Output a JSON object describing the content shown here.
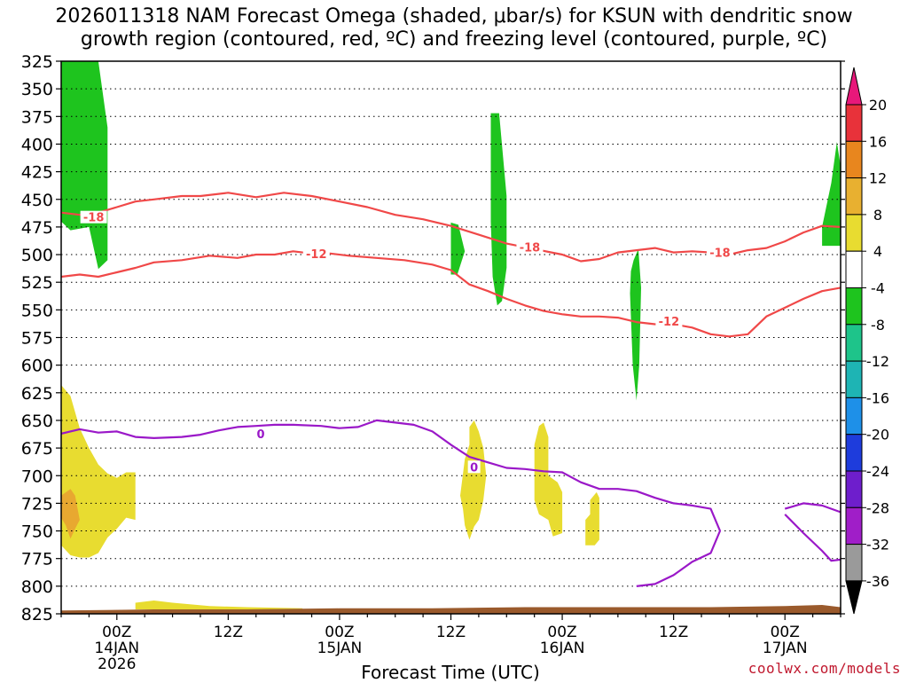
{
  "title_line1": "2026011318 NAM Forecast Omega (shaded, μbar/s) for KSUN with dendritic snow",
  "title_line2": "growth region (contoured, red, ºC) and freezing level (contoured, purple, ºC)",
  "credit": "coolwx.com/models",
  "chart_data": {
    "type": "time-height cross section",
    "xlabel": "Forecast Time (UTC)",
    "ylabel": "",
    "y_axis": {
      "unit": "hPa",
      "inverted": true,
      "range": [
        825,
        325
      ],
      "ticks": [
        325,
        350,
        375,
        400,
        425,
        450,
        475,
        500,
        525,
        550,
        575,
        600,
        625,
        650,
        675,
        700,
        725,
        750,
        775,
        800,
        825
      ]
    },
    "x_axis": {
      "unit": "hours since 2026-01-13 18Z",
      "range": [
        0,
        84
      ],
      "ticks": [
        {
          "hour": 6,
          "label": "00Z",
          "sub1": "14JAN",
          "sub2": "2026"
        },
        {
          "hour": 18,
          "label": "12Z",
          "sub1": "",
          "sub2": ""
        },
        {
          "hour": 30,
          "label": "00Z",
          "sub1": "15JAN",
          "sub2": ""
        },
        {
          "hour": 42,
          "label": "12Z",
          "sub1": "",
          "sub2": ""
        },
        {
          "hour": 54,
          "label": "00Z",
          "sub1": "16JAN",
          "sub2": ""
        },
        {
          "hour": 66,
          "label": "12Z",
          "sub1": "",
          "sub2": ""
        },
        {
          "hour": 78,
          "label": "00Z",
          "sub1": "17JAN",
          "sub2": ""
        }
      ]
    },
    "grid": "dotted horizontal at each pressure tick",
    "colorbar": {
      "labels": [
        "20",
        "16",
        "12",
        "8",
        "4",
        "-4",
        "-8",
        "-12",
        "-16",
        "-20",
        "-24",
        "-28",
        "-32",
        "-36"
      ],
      "colors": [
        "#e8187a",
        "#e8323a",
        "#e8861e",
        "#e8b030",
        "#e8dc30",
        "#ffffff",
        "#1ec41e",
        "#1ec48a",
        "#1eb4b4",
        "#1e90e8",
        "#1e3cdc",
        "#6e1ecc",
        "#a01ec8",
        "#9a9a9a",
        "#000000"
      ]
    },
    "series": [
      {
        "name": "-18",
        "color": "#f04848",
        "label_positions": [
          [
            3.5,
            466
          ],
          [
            50.5,
            493
          ],
          [
            71,
            498
          ]
        ],
        "points": [
          [
            0,
            462
          ],
          [
            2,
            464
          ],
          [
            4,
            462
          ],
          [
            6,
            457
          ],
          [
            8,
            452
          ],
          [
            10,
            450
          ],
          [
            13,
            447
          ],
          [
            15,
            447
          ],
          [
            18,
            444
          ],
          [
            21,
            448
          ],
          [
            24,
            444
          ],
          [
            27,
            447
          ],
          [
            30,
            452
          ],
          [
            33,
            457
          ],
          [
            36,
            464
          ],
          [
            39,
            468
          ],
          [
            42,
            474
          ],
          [
            45,
            482
          ],
          [
            48,
            490
          ],
          [
            51,
            495
          ],
          [
            54,
            500
          ],
          [
            56,
            506
          ],
          [
            58,
            504
          ],
          [
            60,
            498
          ],
          [
            62,
            496
          ],
          [
            64,
            494
          ],
          [
            66,
            498
          ],
          [
            68,
            497
          ],
          [
            70,
            498
          ],
          [
            72,
            500
          ],
          [
            74,
            496
          ],
          [
            76,
            494
          ],
          [
            78,
            488
          ],
          [
            80,
            480
          ],
          [
            82,
            474
          ],
          [
            84,
            475
          ]
        ]
      },
      {
        "name": "-12",
        "color": "#f04848",
        "label_positions": [
          [
            27.5,
            499
          ],
          [
            65.5,
            560
          ]
        ],
        "points": [
          [
            0,
            520
          ],
          [
            2,
            518
          ],
          [
            4,
            520
          ],
          [
            6,
            516
          ],
          [
            8,
            512
          ],
          [
            10,
            507
          ],
          [
            13,
            505
          ],
          [
            16,
            501
          ],
          [
            19,
            503
          ],
          [
            21,
            500
          ],
          [
            23,
            500
          ],
          [
            25,
            497
          ],
          [
            27,
            499
          ],
          [
            29,
            499
          ],
          [
            31,
            501
          ],
          [
            34,
            503
          ],
          [
            37,
            505
          ],
          [
            40,
            509
          ],
          [
            42,
            514
          ],
          [
            44,
            527
          ],
          [
            46,
            533
          ],
          [
            48,
            540
          ],
          [
            50,
            546
          ],
          [
            52,
            551
          ],
          [
            54,
            554
          ],
          [
            56,
            556
          ],
          [
            58,
            556
          ],
          [
            60,
            557
          ],
          [
            62,
            561
          ],
          [
            64,
            563
          ],
          [
            66,
            563
          ],
          [
            68,
            566
          ],
          [
            70,
            572
          ],
          [
            72,
            574
          ],
          [
            74,
            572
          ],
          [
            76,
            556
          ],
          [
            78,
            548
          ],
          [
            80,
            540
          ],
          [
            82,
            533
          ],
          [
            84,
            530
          ]
        ]
      },
      {
        "name": "0",
        "color": "#9a18c8",
        "label_positions": [
          [
            21.5,
            662
          ],
          [
            44.5,
            692
          ]
        ],
        "points": [
          [
            0,
            662
          ],
          [
            2,
            658
          ],
          [
            4,
            661
          ],
          [
            6,
            660
          ],
          [
            8,
            665
          ],
          [
            10,
            666
          ],
          [
            13,
            665
          ],
          [
            15,
            663
          ],
          [
            17,
            659
          ],
          [
            19,
            656
          ],
          [
            21,
            655
          ],
          [
            23,
            654
          ],
          [
            25,
            654
          ],
          [
            28,
            655
          ],
          [
            30,
            657
          ],
          [
            32,
            656
          ],
          [
            34,
            650
          ],
          [
            36,
            652
          ],
          [
            38,
            654
          ],
          [
            40,
            660
          ],
          [
            42,
            672
          ],
          [
            44,
            683
          ],
          [
            46,
            688
          ],
          [
            48,
            693
          ],
          [
            50,
            694
          ],
          [
            52,
            696
          ],
          [
            54,
            697
          ],
          [
            56,
            706
          ],
          [
            58,
            712
          ],
          [
            60,
            712
          ],
          [
            62,
            714
          ],
          [
            64,
            720
          ],
          [
            66,
            725
          ],
          [
            68,
            727
          ],
          [
            70,
            730
          ],
          [
            71,
            750
          ],
          [
            70,
            770
          ],
          [
            68,
            778
          ],
          [
            66,
            790
          ],
          [
            64,
            798
          ],
          [
            62,
            800
          ]
        ]
      },
      {
        "name": "0 (right edge)",
        "color": "#9a18c8",
        "label_positions": [],
        "points": [
          [
            78,
            730
          ],
          [
            80,
            725
          ],
          [
            82,
            727
          ],
          [
            84,
            733
          ]
        ]
      },
      {
        "name": "0 (right edge, lower)",
        "color": "#9a18c8",
        "label_positions": [],
        "points": [
          [
            78,
            735
          ],
          [
            80,
            752
          ],
          [
            82,
            768
          ],
          [
            83,
            777
          ],
          [
            84,
            776
          ]
        ]
      }
    ],
    "shaded_regions": [
      {
        "range": "-8 to -4",
        "color": "#1ec41e",
        "points": [
          [
            0,
            325
          ],
          [
            4,
            325
          ],
          [
            5,
            385
          ],
          [
            5,
            505
          ],
          [
            4,
            513
          ],
          [
            3,
            475
          ],
          [
            1,
            478
          ],
          [
            0,
            470
          ]
        ]
      },
      {
        "range": "-8 to -4",
        "color": "#1ec41e",
        "points": [
          [
            42,
            471
          ],
          [
            42.8,
            473
          ],
          [
            43.5,
            497
          ],
          [
            42.7,
            518
          ],
          [
            42,
            518
          ]
        ]
      },
      {
        "range": "-8 to -4",
        "color": "#1ec41e",
        "points": [
          [
            46.3,
            372
          ],
          [
            47.2,
            372
          ],
          [
            48,
            447
          ],
          [
            48,
            512
          ],
          [
            47.5,
            542
          ],
          [
            47,
            546
          ],
          [
            46.5,
            520
          ],
          [
            46.3,
            470
          ]
        ]
      },
      {
        "range": "-8 to -4",
        "color": "#1ec41e",
        "points": [
          [
            61.7,
            505
          ],
          [
            62.2,
            495
          ],
          [
            62.5,
            530
          ],
          [
            62.3,
            600
          ],
          [
            62,
            632
          ],
          [
            61.6,
            600
          ],
          [
            61.3,
            535
          ],
          [
            61.4,
            515
          ]
        ]
      },
      {
        "range": "-8 to -4",
        "color": "#1ec41e",
        "points": [
          [
            83,
            435
          ],
          [
            83.6,
            398
          ],
          [
            84,
            420
          ],
          [
            84,
            492
          ],
          [
            82,
            492
          ],
          [
            82,
            475
          ]
        ]
      },
      {
        "range": "4 to 8",
        "color": "#e8dc30",
        "points": [
          [
            0,
            618
          ],
          [
            1,
            628
          ],
          [
            2,
            657
          ],
          [
            3,
            675
          ],
          [
            4,
            690
          ],
          [
            5,
            698
          ],
          [
            6,
            702
          ],
          [
            7,
            697
          ],
          [
            8,
            697
          ],
          [
            8,
            740
          ],
          [
            7,
            738
          ],
          [
            6,
            748
          ],
          [
            5,
            756
          ],
          [
            4,
            770
          ],
          [
            3,
            774
          ],
          [
            2,
            774
          ],
          [
            1,
            772
          ],
          [
            0,
            763
          ]
        ]
      },
      {
        "range": "4 to 8",
        "color": "#e8dc30",
        "points": [
          [
            43.5,
            685
          ],
          [
            44,
            672
          ],
          [
            44,
            656
          ],
          [
            44.5,
            650
          ],
          [
            45,
            660
          ],
          [
            45.5,
            675
          ],
          [
            45.8,
            700
          ],
          [
            45.5,
            722
          ],
          [
            45,
            740
          ],
          [
            44.5,
            746
          ],
          [
            44,
            758
          ],
          [
            43.5,
            745
          ],
          [
            43.3,
            730
          ],
          [
            43,
            718
          ]
        ]
      },
      {
        "range": "4 to 8",
        "color": "#e8dc30",
        "points": [
          [
            51,
            672
          ],
          [
            51.5,
            655
          ],
          [
            52,
            652
          ],
          [
            52.5,
            665
          ],
          [
            52.5,
            700
          ],
          [
            53.5,
            706
          ],
          [
            54,
            715
          ],
          [
            54,
            752
          ],
          [
            53,
            755
          ],
          [
            52.5,
            740
          ],
          [
            51.5,
            735
          ],
          [
            51,
            722
          ]
        ]
      },
      {
        "range": "4 to 8",
        "color": "#e8dc30",
        "points": [
          [
            56.5,
            740
          ],
          [
            57,
            735
          ],
          [
            57,
            722
          ],
          [
            57.7,
            715
          ],
          [
            58,
            720
          ],
          [
            58,
            758
          ],
          [
            57.5,
            763
          ],
          [
            56.5,
            763
          ]
        ]
      },
      {
        "range": "8 to 12",
        "color": "#e8a830",
        "points": [
          [
            0,
            718
          ],
          [
            1,
            712
          ],
          [
            1.5,
            718
          ],
          [
            2,
            740
          ],
          [
            1.5,
            748
          ],
          [
            1,
            757
          ],
          [
            0.5,
            745
          ],
          [
            0,
            738
          ]
        ]
      },
      {
        "range": "4 to 8",
        "color": "#e8dc30",
        "points": [
          [
            8,
            815
          ],
          [
            10,
            813
          ],
          [
            12,
            815
          ],
          [
            16,
            818
          ],
          [
            20,
            819
          ],
          [
            26,
            820
          ],
          [
            26,
            821
          ],
          [
            8,
            821
          ]
        ]
      }
    ],
    "terrain": {
      "color": "#9a5a2c",
      "points": [
        [
          0,
          822
        ],
        [
          10,
          821
        ],
        [
          20,
          821
        ],
        [
          30,
          820
        ],
        [
          40,
          820
        ],
        [
          50,
          819
        ],
        [
          60,
          819
        ],
        [
          70,
          819
        ],
        [
          78,
          818
        ],
        [
          82,
          817
        ],
        [
          84,
          819
        ]
      ]
    }
  }
}
